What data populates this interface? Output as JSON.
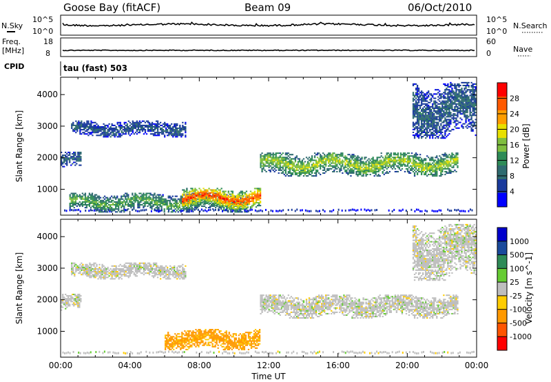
{
  "header": {
    "station": "Goose Bay (fitACF)",
    "beam": "Beam 09",
    "date": "06/Oct/2010"
  },
  "top_panels": {
    "nsky_label": "N.Sky",
    "nsearch_label": "N.Search",
    "noise_ticks": [
      "10^5",
      "10^0"
    ],
    "freq_label_1": "Freq.",
    "freq_label_2": "[MHz]",
    "freq_ticks": [
      "18",
      "8"
    ],
    "nave_label": "Nave",
    "nave_ticks": [
      "60",
      "0"
    ],
    "cpid_label": "CPID",
    "cpid_text": "tau (fast) 503"
  },
  "colors": {
    "power_scale": [
      "#0000ff",
      "#1a3a9c",
      "#2f6b70",
      "#2e8b57",
      "#7fbf3f",
      "#e8e000",
      "#ff9d00",
      "#ff5a00",
      "#ff0000"
    ],
    "velocity_scale": [
      "#0000cc",
      "#1a4a9c",
      "#2e8b57",
      "#66cc33",
      "#bebebe",
      "#ffcc00",
      "#ff9900",
      "#ff5500",
      "#ff0000"
    ]
  },
  "chart_data": [
    {
      "type": "heatmap",
      "title": "",
      "xlabel": "",
      "ylabel": "Slant Range [km]",
      "xlim": [
        "00:00",
        "24:00"
      ],
      "ylim": [
        180,
        4550
      ],
      "x_ticks": [
        "00:00",
        "04:00",
        "08:00",
        "12:00",
        "16:00",
        "20:00",
        "00:00"
      ],
      "y_ticks": [
        1000,
        2000,
        3000,
        4000
      ],
      "colorbar_label": "Power [dB]",
      "colorbar_ticks": [
        "4",
        "8",
        "12",
        "16",
        "20",
        "24",
        "28"
      ],
      "colorbar_range": [
        0,
        30
      ],
      "regions": [
        {
          "name": "early-3000km",
          "t_start": 0.6,
          "t_end": 7.2,
          "r_center": 2900,
          "r_width": 260,
          "value": 6
        },
        {
          "name": "early-1900km",
          "t_start": 0.0,
          "t_end": 1.2,
          "r_center": 1900,
          "r_width": 250,
          "value": 7
        },
        {
          "name": "near-range-echo",
          "t_start": 0.5,
          "t_end": 10.8,
          "r_center": 560,
          "r_width": 300,
          "value": 14
        },
        {
          "name": "strong-morning-echo",
          "t_start": 7.0,
          "t_end": 11.5,
          "r_center": 700,
          "r_width": 330,
          "value": 28
        },
        {
          "name": "main-1800km",
          "t_start": 11.5,
          "t_end": 22.9,
          "r_center": 1780,
          "r_width": 380,
          "value": 17
        },
        {
          "name": "late-high-range",
          "t_start": 20.3,
          "t_end": 23.9,
          "r_center": 3500,
          "r_width": 900,
          "value": 7
        }
      ]
    },
    {
      "type": "heatmap",
      "title": "",
      "xlabel": "Time UT",
      "ylabel": "Slant Range [km]",
      "xlim": [
        "00:00",
        "24:00"
      ],
      "ylim": [
        180,
        4550
      ],
      "x_ticks": [
        "00:00",
        "04:00",
        "08:00",
        "12:00",
        "16:00",
        "20:00",
        "00:00"
      ],
      "y_ticks": [
        1000,
        2000,
        3000,
        4000
      ],
      "colorbar_label": "Velocity [m s^-1]",
      "colorbar_ticks": [
        "1000",
        "500",
        "100",
        "25",
        "-25",
        "-100",
        "-500",
        "-1000"
      ],
      "regions": [
        {
          "name": "early-3000km",
          "t_start": 0.6,
          "t_end": 7.2,
          "r_center": 2900,
          "r_width": 260,
          "value": 0
        },
        {
          "name": "early-1900km",
          "t_start": 0.0,
          "t_end": 1.2,
          "r_center": 1900,
          "r_width": 250,
          "value": 0
        },
        {
          "name": "morning-echo",
          "t_start": 6.0,
          "t_end": 11.5,
          "r_center": 720,
          "r_width": 320,
          "value": -200
        },
        {
          "name": "main-1800km",
          "t_start": 11.5,
          "t_end": 22.9,
          "r_center": 1780,
          "r_width": 380,
          "value": 0
        },
        {
          "name": "late-high-range",
          "t_start": 20.3,
          "t_end": 23.9,
          "r_center": 3500,
          "r_width": 900,
          "value": 0
        }
      ]
    }
  ]
}
